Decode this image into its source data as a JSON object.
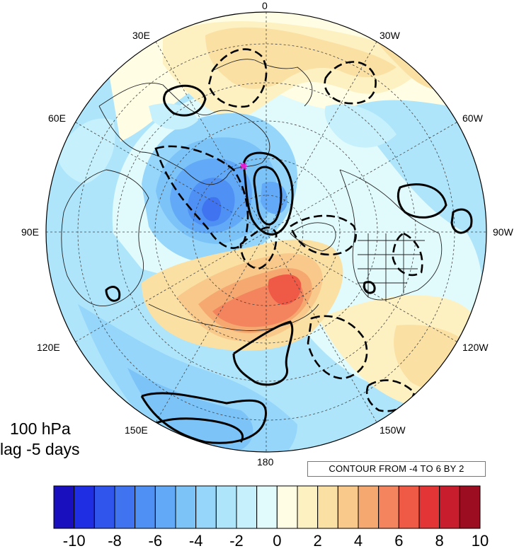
{
  "title": {
    "level": "100 hPa",
    "lag": "lag -5 days"
  },
  "longitude_labels": [
    "0",
    "30W",
    "60W",
    "90W",
    "120W",
    "150W",
    "180",
    "150E",
    "120E",
    "90E",
    "60E",
    "30E"
  ],
  "contour_info": "CONTOUR FROM -4 TO 6 BY 2",
  "projection": "north polar stereographic",
  "shading": {
    "colors": [
      "#1a0fbf",
      "#1f2ee3",
      "#2f55ec",
      "#3f73f0",
      "#4e90f4",
      "#62aaf7",
      "#7cc3f8",
      "#95d6fa",
      "#aee5fb",
      "#c6f1fc",
      "#e1fbfd",
      "#fffde3",
      "#fdf1c2",
      "#fbe0a4",
      "#f9c98b",
      "#f5a86f",
      "#f3845e",
      "#ef5a46",
      "#e33535",
      "#c81d2c",
      "#9c0d22"
    ],
    "tick_labels": [
      "-10",
      "-8",
      "-6",
      "-4",
      "-2",
      "0",
      "2",
      "4",
      "6",
      "8",
      "10"
    ]
  },
  "contours": {
    "min": -4,
    "max": 6,
    "interval": 2,
    "negative_style": "dashed",
    "positive_style": "solid"
  },
  "marker": {
    "color": "#e020d0",
    "shape": "asterisk"
  }
}
